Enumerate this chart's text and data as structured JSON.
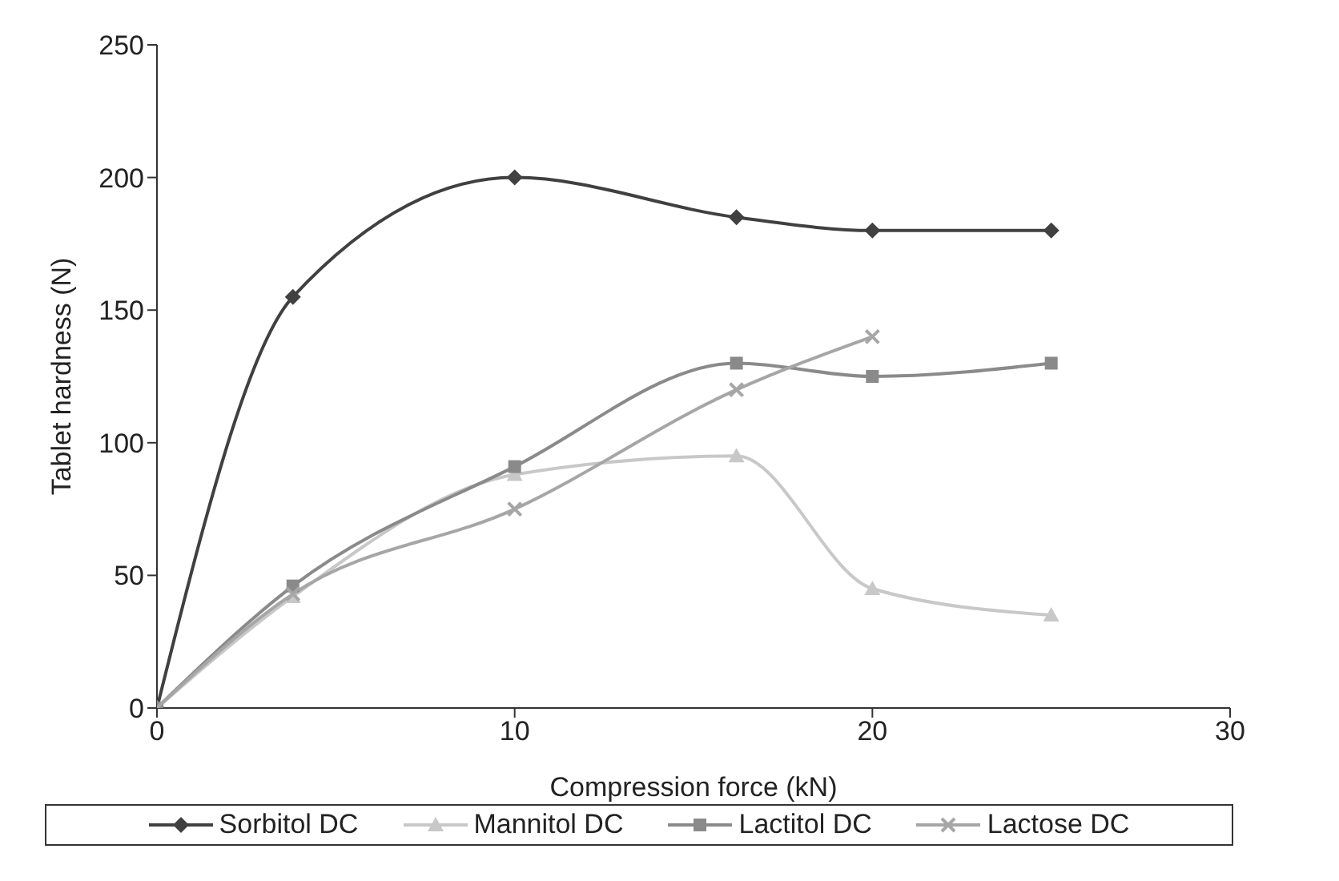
{
  "chart_data": {
    "type": "line",
    "xlabel": "Compression force (kN)",
    "ylabel": "Tablet hardness (N)",
    "x": [
      0,
      3.8,
      10,
      16.2,
      20,
      25
    ],
    "series": [
      {
        "name": "Sorbitol DC",
        "color": "#404040",
        "marker": "diamond",
        "values": [
          0,
          155,
          200,
          185,
          180,
          180
        ]
      },
      {
        "name": "Mannitol DC",
        "color": "#c8c8c8",
        "marker": "triangle",
        "values": [
          0,
          42,
          88,
          95,
          45,
          35
        ]
      },
      {
        "name": "Lactitol DC",
        "color": "#8a8a8a",
        "marker": "square",
        "values": [
          0,
          46,
          91,
          130,
          125,
          130
        ]
      },
      {
        "name": "Lactose DC",
        "color": "#a6a6a6",
        "marker": "cross",
        "values": [
          0,
          43,
          75,
          120,
          140,
          null
        ]
      }
    ],
    "xlim": [
      0,
      30
    ],
    "xticks": [
      0,
      10,
      20,
      30
    ],
    "ylim": [
      0,
      250
    ],
    "yticks": [
      0,
      50,
      100,
      150,
      200,
      250
    ],
    "grid": false,
    "legend": "bottom"
  }
}
